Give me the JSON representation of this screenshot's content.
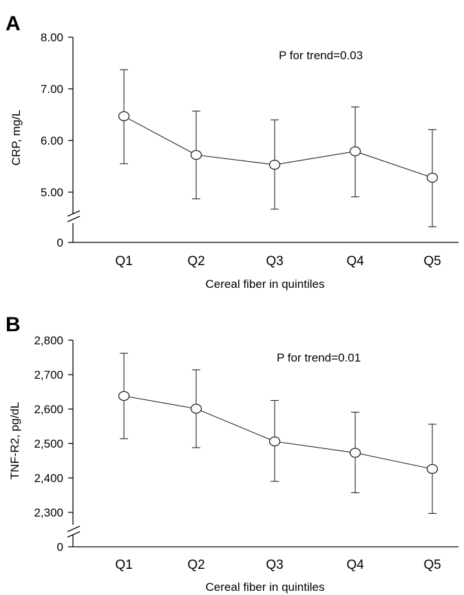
{
  "chart_data": [
    {
      "type": "line",
      "panel_label": "A",
      "categories": [
        "Q1",
        "Q2",
        "Q3",
        "Q4",
        "Q5"
      ],
      "values": [
        6.47,
        5.72,
        5.53,
        5.79,
        5.28
      ],
      "error_low": [
        5.55,
        4.87,
        4.67,
        4.91,
        4.33
      ],
      "error_high": [
        7.37,
        6.57,
        6.4,
        6.65,
        6.21
      ],
      "xlabel": "Cereal fiber in quintiles",
      "ylabel": "CRP, mg/L",
      "yticks": [
        "8.00",
        "7.00",
        "6.00",
        "5.00",
        "0"
      ],
      "ylim": [
        4.0,
        8.0
      ],
      "axis_break": true,
      "annotation": "P for trend=0.03"
    },
    {
      "type": "line",
      "panel_label": "B",
      "categories": [
        "Q1",
        "Q2",
        "Q3",
        "Q4",
        "Q5"
      ],
      "values": [
        2638,
        2601,
        2506,
        2473,
        2426
      ],
      "error_low": [
        2514,
        2488,
        2390,
        2357,
        2297
      ],
      "error_high": [
        2762,
        2714,
        2625,
        2591,
        2556
      ],
      "xlabel": "Cereal fiber in quintiles",
      "ylabel": "TNF-R2, pg/dL",
      "yticks": [
        "2,800",
        "2,700",
        "2,600",
        "2,500",
        "2,400",
        "2,300",
        "0"
      ],
      "ylim": [
        2200,
        2800
      ],
      "axis_break": true,
      "annotation": "P for trend=0.01"
    }
  ]
}
